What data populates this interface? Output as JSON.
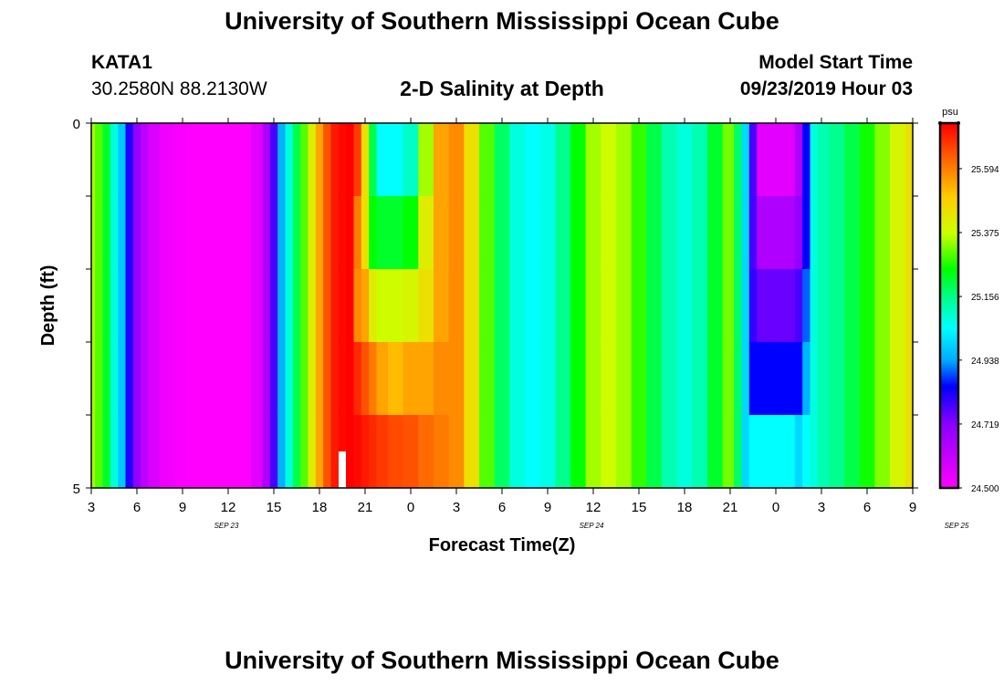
{
  "header": {
    "title": "University of Southern Mississippi Ocean Cube",
    "station": "KATA1",
    "coords": "30.2580N 88.2130W",
    "subtitle": "2-D Salinity at Depth",
    "model_label": "Model Start Time",
    "model_time": "09/23/2019 Hour 03"
  },
  "footer": {
    "title": "University of Southern Mississippi Ocean Cube"
  },
  "chart_data": {
    "type": "heatmap",
    "title": "2-D Salinity at Depth",
    "xlabel": "Forecast Time(Z)",
    "ylabel": "Depth (ft)",
    "x_range_hours": [
      0,
      54
    ],
    "y_range_ft": [
      0,
      5
    ],
    "x_tick_labels": [
      "3",
      "6",
      "9",
      "12",
      "15",
      "18",
      "21",
      "0",
      "3",
      "6",
      "9",
      "12",
      "15",
      "18",
      "21",
      "0",
      "3",
      "6",
      "9"
    ],
    "y_tick_labels": [
      "0",
      "5"
    ],
    "date_labels": [
      {
        "text": "SEP 23",
        "hour": 9
      },
      {
        "text": "SEP 24",
        "hour": 33
      },
      {
        "text": "SEP 25",
        "hour": 57
      }
    ],
    "colorbar": {
      "unit": "psu",
      "min": 24.5,
      "max": 25.75,
      "tick_values": [
        24.5,
        24.719,
        24.938,
        25.156,
        25.375,
        25.594
      ],
      "tick_labels": [
        "24.500",
        "24.719",
        "24.938",
        "25.156",
        "25.375",
        "25.594"
      ]
    },
    "depth_levels": 5,
    "columns": [
      {
        "h": 0.0,
        "v": [
          25.35,
          25.35,
          25.35,
          25.35,
          25.35
        ]
      },
      {
        "h": 0.5,
        "v": [
          25.3,
          25.3,
          25.3,
          25.3,
          25.3
        ]
      },
      {
        "h": 1.0,
        "v": [
          25.22,
          25.22,
          25.22,
          25.22,
          25.22
        ]
      },
      {
        "h": 1.5,
        "v": [
          25.08,
          25.08,
          25.08,
          25.08,
          25.08
        ]
      },
      {
        "h": 2.0,
        "v": [
          24.98,
          24.98,
          24.98,
          24.98,
          24.98
        ]
      },
      {
        "h": 2.5,
        "v": [
          24.82,
          24.82,
          24.82,
          24.82,
          24.82
        ]
      },
      {
        "h": 3.0,
        "v": [
          24.7,
          24.7,
          24.7,
          24.7,
          24.7
        ]
      },
      {
        "h": 3.5,
        "v": [
          24.62,
          24.62,
          24.62,
          24.62,
          24.62
        ]
      },
      {
        "h": 4.0,
        "v": [
          24.57,
          24.57,
          24.57,
          24.57,
          24.57
        ]
      },
      {
        "h": 5.0,
        "v": [
          24.53,
          24.53,
          24.53,
          24.53,
          24.53
        ]
      },
      {
        "h": 6.0,
        "v": [
          24.51,
          24.51,
          24.51,
          24.51,
          24.51
        ]
      },
      {
        "h": 7.0,
        "v": [
          24.5,
          24.5,
          24.5,
          24.5,
          24.5
        ]
      },
      {
        "h": 8.0,
        "v": [
          24.5,
          24.5,
          24.5,
          24.5,
          24.5
        ]
      },
      {
        "h": 9.0,
        "v": [
          24.5,
          24.5,
          24.5,
          24.5,
          24.5
        ]
      },
      {
        "h": 10.0,
        "v": [
          24.5,
          24.5,
          24.5,
          24.5,
          24.5
        ]
      },
      {
        "h": 11.0,
        "v": [
          24.55,
          24.55,
          24.55,
          24.55,
          24.55
        ]
      },
      {
        "h": 11.5,
        "v": [
          24.65,
          24.65,
          24.65,
          24.65,
          24.65
        ]
      },
      {
        "h": 12.0,
        "v": [
          24.78,
          24.78,
          24.78,
          24.78,
          24.78
        ]
      },
      {
        "h": 12.5,
        "v": [
          24.95,
          24.95,
          24.95,
          24.95,
          24.95
        ]
      },
      {
        "h": 13.0,
        "v": [
          25.08,
          25.08,
          25.08,
          25.08,
          25.08
        ]
      },
      {
        "h": 13.5,
        "v": [
          25.2,
          25.2,
          25.2,
          25.2,
          25.2
        ]
      },
      {
        "h": 14.0,
        "v": [
          25.3,
          25.3,
          25.3,
          25.3,
          25.3
        ]
      },
      {
        "h": 14.5,
        "v": [
          25.42,
          25.42,
          25.42,
          25.42,
          25.42
        ]
      },
      {
        "h": 15.0,
        "v": [
          25.55,
          25.55,
          25.55,
          25.55,
          25.55
        ]
      },
      {
        "h": 15.5,
        "v": [
          25.65,
          25.65,
          25.65,
          25.65,
          25.65
        ]
      },
      {
        "h": 16.0,
        "v": [
          25.72,
          25.72,
          25.72,
          25.72,
          25.72
        ]
      },
      {
        "h": 16.5,
        "v": [
          25.74,
          25.74,
          25.74,
          25.74,
          25.74
        ]
      },
      {
        "h": 17.0,
        "v": [
          25.75,
          25.75,
          25.75,
          25.75,
          25.75
        ]
      },
      {
        "h": 17.5,
        "v": [
          25.68,
          25.6,
          25.58,
          25.7,
          25.74
        ]
      },
      {
        "h": 18.0,
        "v": [
          25.45,
          25.45,
          25.55,
          25.65,
          25.72
        ]
      },
      {
        "h": 18.5,
        "v": [
          25.2,
          25.25,
          25.42,
          25.6,
          25.7
        ]
      },
      {
        "h": 19.0,
        "v": [
          25.05,
          25.22,
          25.38,
          25.55,
          25.68
        ]
      },
      {
        "h": 20.0,
        "v": [
          25.05,
          25.22,
          25.38,
          25.52,
          25.66
        ]
      },
      {
        "h": 21.0,
        "v": [
          25.1,
          25.25,
          25.4,
          25.55,
          25.65
        ]
      },
      {
        "h": 22.0,
        "v": [
          25.35,
          25.42,
          25.45,
          25.55,
          25.62
        ]
      },
      {
        "h": 23.0,
        "v": [
          25.55,
          25.55,
          25.55,
          25.58,
          25.6
        ]
      },
      {
        "h": 24.0,
        "v": [
          25.58,
          25.58,
          25.58,
          25.58,
          25.58
        ]
      },
      {
        "h": 25.0,
        "v": [
          25.45,
          25.45,
          25.45,
          25.45,
          25.45
        ]
      },
      {
        "h": 26.0,
        "v": [
          25.3,
          25.3,
          25.3,
          25.3,
          25.3
        ]
      },
      {
        "h": 27.0,
        "v": [
          25.18,
          25.18,
          25.18,
          25.18,
          25.18
        ]
      },
      {
        "h": 28.0,
        "v": [
          25.08,
          25.08,
          25.08,
          25.08,
          25.08
        ]
      },
      {
        "h": 29.0,
        "v": [
          25.05,
          25.05,
          25.05,
          25.05,
          25.05
        ]
      },
      {
        "h": 30.0,
        "v": [
          25.07,
          25.07,
          25.07,
          25.07,
          25.07
        ]
      },
      {
        "h": 31.0,
        "v": [
          25.15,
          25.15,
          25.15,
          25.15,
          25.15
        ]
      },
      {
        "h": 32.0,
        "v": [
          25.25,
          25.25,
          25.25,
          25.25,
          25.25
        ]
      },
      {
        "h": 33.0,
        "v": [
          25.35,
          25.35,
          25.35,
          25.35,
          25.35
        ]
      },
      {
        "h": 34.0,
        "v": [
          25.38,
          25.38,
          25.38,
          25.38,
          25.38
        ]
      },
      {
        "h": 35.0,
        "v": [
          25.35,
          25.35,
          25.35,
          25.35,
          25.35
        ]
      },
      {
        "h": 36.0,
        "v": [
          25.28,
          25.28,
          25.28,
          25.28,
          25.28
        ]
      },
      {
        "h": 37.0,
        "v": [
          25.2,
          25.2,
          25.2,
          25.2,
          25.2
        ]
      },
      {
        "h": 38.0,
        "v": [
          25.12,
          25.12,
          25.12,
          25.12,
          25.12
        ]
      },
      {
        "h": 39.0,
        "v": [
          25.08,
          25.08,
          25.08,
          25.08,
          25.08
        ]
      },
      {
        "h": 40.0,
        "v": [
          25.12,
          25.12,
          25.12,
          25.12,
          25.12
        ]
      },
      {
        "h": 41.0,
        "v": [
          25.22,
          25.22,
          25.22,
          25.22,
          25.22
        ]
      },
      {
        "h": 42.0,
        "v": [
          25.32,
          25.32,
          25.32,
          25.32,
          25.32
        ]
      },
      {
        "h": 42.5,
        "v": [
          25.18,
          25.18,
          25.18,
          25.18,
          25.18
        ]
      },
      {
        "h": 43.0,
        "v": [
          25.0,
          25.0,
          25.0,
          25.0,
          25.0
        ]
      },
      {
        "h": 43.5,
        "v": [
          24.78,
          24.78,
          24.8,
          24.85,
          25.05
        ]
      },
      {
        "h": 44.0,
        "v": [
          24.55,
          24.65,
          24.75,
          24.85,
          25.05
        ]
      },
      {
        "h": 45.0,
        "v": [
          24.55,
          24.65,
          24.75,
          24.85,
          25.05
        ]
      },
      {
        "h": 46.0,
        "v": [
          24.55,
          24.65,
          24.75,
          24.85,
          25.05
        ]
      },
      {
        "h": 46.5,
        "v": [
          24.65,
          24.7,
          24.78,
          24.85,
          25.0
        ]
      },
      {
        "h": 47.0,
        "v": [
          24.85,
          24.85,
          24.9,
          24.95,
          25.05
        ]
      },
      {
        "h": 47.5,
        "v": [
          25.08,
          25.08,
          25.08,
          25.08,
          25.08
        ]
      },
      {
        "h": 48.0,
        "v": [
          25.12,
          25.12,
          25.12,
          25.12,
          25.12
        ]
      },
      {
        "h": 49.0,
        "v": [
          25.15,
          25.15,
          25.15,
          25.15,
          25.15
        ]
      },
      {
        "h": 50.0,
        "v": [
          25.2,
          25.2,
          25.2,
          25.2,
          25.2
        ]
      },
      {
        "h": 51.0,
        "v": [
          25.26,
          25.26,
          25.26,
          25.26,
          25.26
        ]
      },
      {
        "h": 52.0,
        "v": [
          25.33,
          25.33,
          25.33,
          25.33,
          25.33
        ]
      },
      {
        "h": 53.0,
        "v": [
          25.4,
          25.4,
          25.4,
          25.4,
          25.4
        ]
      },
      {
        "h": 54.0,
        "v": [
          25.45,
          25.45,
          25.45,
          25.45,
          25.45
        ]
      }
    ],
    "marker": {
      "hour": 16.5,
      "depth_from": 4.5,
      "depth_to": 5.0,
      "color": "#ffffff"
    },
    "color_stops": [
      {
        "v": 24.5,
        "c": "#ff00ff"
      },
      {
        "v": 24.719,
        "c": "#8a00ff"
      },
      {
        "v": 24.85,
        "c": "#0000ff"
      },
      {
        "v": 24.938,
        "c": "#00aaff"
      },
      {
        "v": 25.05,
        "c": "#00ffff"
      },
      {
        "v": 25.156,
        "c": "#00ff88"
      },
      {
        "v": 25.25,
        "c": "#00ff00"
      },
      {
        "v": 25.375,
        "c": "#ccff00"
      },
      {
        "v": 25.5,
        "c": "#ffcc00"
      },
      {
        "v": 25.594,
        "c": "#ff8000"
      },
      {
        "v": 25.75,
        "c": "#ff0000"
      }
    ]
  }
}
